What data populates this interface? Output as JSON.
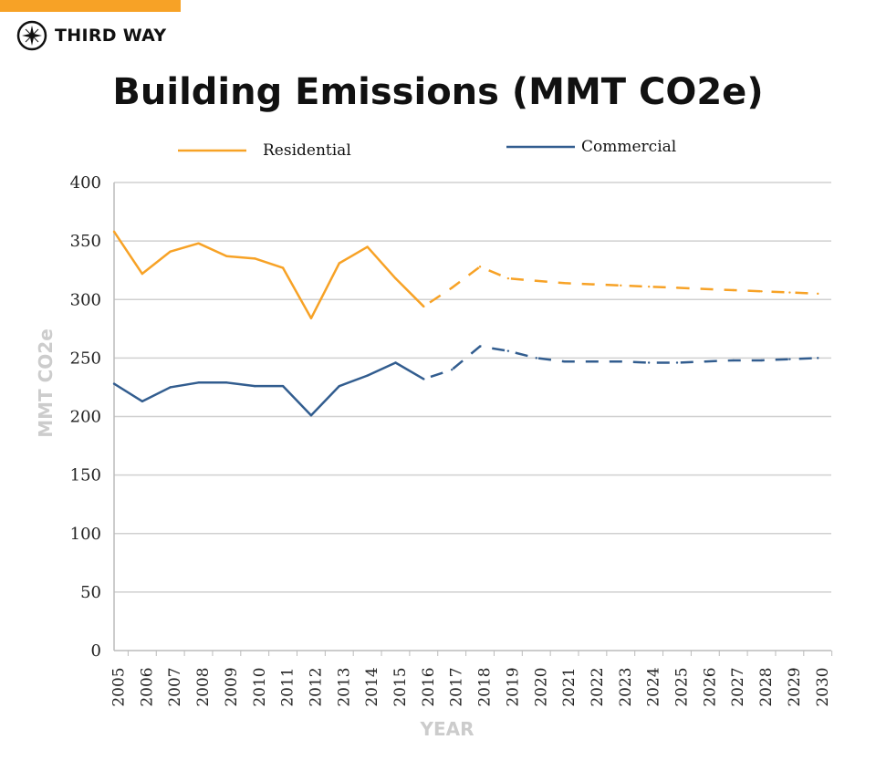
{
  "brand": {
    "name": "THIRD WAY",
    "accent": "#F7A226"
  },
  "chart_data": {
    "type": "line",
    "title": "Building Emissions (MMT CO2e)",
    "xlabel": "YEAR",
    "ylabel": "MMT CO2e",
    "ylim": [
      0,
      400
    ],
    "yticks": [
      0,
      50,
      100,
      150,
      200,
      250,
      300,
      350,
      400
    ],
    "grid": true,
    "legend": "top",
    "x": [
      2005,
      2006,
      2007,
      2008,
      2009,
      2010,
      2011,
      2012,
      2013,
      2014,
      2015,
      2016,
      2017,
      2018,
      2019,
      2020,
      2021,
      2022,
      2023,
      2024,
      2025,
      2026,
      2027,
      2028,
      2029,
      2030
    ],
    "projection_start": 2016,
    "series": [
      {
        "name": "Residential",
        "color": "#F7A226",
        "values": [
          358,
          322,
          341,
          348,
          337,
          335,
          327,
          284,
          331,
          345,
          318,
          294,
          310,
          328,
          318,
          316,
          314,
          313,
          312,
          311,
          310,
          309,
          308,
          307,
          306,
          305
        ]
      },
      {
        "name": "Commercial",
        "color": "#325D8F",
        "values": [
          228,
          213,
          225,
          229,
          229,
          226,
          226,
          201,
          226,
          235,
          246,
          232,
          240,
          260,
          256,
          250,
          247,
          247,
          247,
          246,
          246,
          247,
          248,
          248,
          249,
          250
        ]
      }
    ]
  }
}
